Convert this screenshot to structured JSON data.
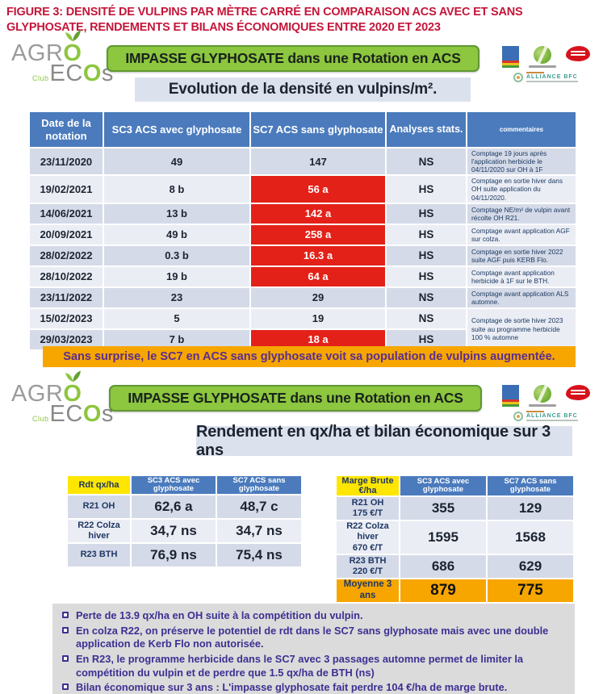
{
  "title": "FIGURE 3: DENSITÉ DE VULPINS PAR MÈTRE CARRÉ EN COMPARAISON ACS AVEC ET SANS GLYPHOSATE, RENDEMENTS ET BILANS ÉCONOMIQUES ENTRE 2020 ET 2023",
  "logo": {
    "agro_prefix": "AGR",
    "agro_o": "O",
    "club": "Club",
    "eco_prefix": "EC",
    "eco_o": "O",
    "eco_suffix": "s"
  },
  "partner_logos": {
    "alliance_label": "ALLIANCE BFC"
  },
  "section1": {
    "banner": "IMPASSE GLYPHOSATE dans une Rotation en ACS",
    "subtitle": "Evolution de la densité en vulpins/m².",
    "table": {
      "headers": {
        "date": "Date de la notation",
        "sc3": "SC3 ACS avec glyphosate",
        "sc7": "SC7 ACS sans glyphosate",
        "stats": "Analyses stats.",
        "comments": "commentaires"
      },
      "rows": [
        {
          "date": "23/11/2020",
          "sc3": "49",
          "sc7": "147",
          "sc7_red": false,
          "stats": "NS",
          "comment": "Comptage 19 jours après l'application herbicide le 04/11/2020 sur OH à 1F",
          "comment_rowspan": 1
        },
        {
          "date": "19/02/2021",
          "sc3": "8 b",
          "sc7": "56 a",
          "sc7_red": true,
          "stats": "HS",
          "comment": "Comptage en sortie hiver dans OH suite application du 04/11/2020.",
          "comment_rowspan": 1
        },
        {
          "date": "14/06/2021",
          "sc3": "13 b",
          "sc7": "142 a",
          "sc7_red": true,
          "stats": "HS",
          "comment": "Comptage NE/m² de vulpin avant récolte OH R21.",
          "comment_rowspan": 1
        },
        {
          "date": "20/09/2021",
          "sc3": "49 b",
          "sc7": "258 a",
          "sc7_red": true,
          "stats": "HS",
          "comment": "Comptage avant application AGF sur colza.",
          "comment_rowspan": 1
        },
        {
          "date": "28/02/2022",
          "sc3": "0.3 b",
          "sc7": "16.3 a",
          "sc7_red": true,
          "stats": "HS",
          "comment": "Comptage en sortie hiver 2022 suite AGF puis KERB Flo.",
          "comment_rowspan": 1
        },
        {
          "date": "28/10/2022",
          "sc3": "19 b",
          "sc7": "64 a",
          "sc7_red": true,
          "stats": "HS",
          "comment": "Comptage avant application herbicide à 1F sur le BTH.",
          "comment_rowspan": 1
        },
        {
          "date": "23/11/2022",
          "sc3": "23",
          "sc7": "29",
          "sc7_red": false,
          "stats": "NS",
          "comment": "Comptage avant application ALS automne.",
          "comment_rowspan": 1
        },
        {
          "date": "15/02/2023",
          "sc3": "5",
          "sc7": "19",
          "sc7_red": false,
          "stats": "NS",
          "comment": "Comptage de sortie hiver 2023 suite au programme herbicide 100 % automne",
          "comment_rowspan": 2
        },
        {
          "date": "29/03/2023",
          "sc3": "7 b",
          "sc7": "18 a",
          "sc7_red": true,
          "stats": "HS",
          "comment": null,
          "comment_rowspan": 0
        }
      ]
    },
    "conclusion": "Sans surprise, le SC7 en ACS sans glyphosate voit sa population de vulpins augmentée."
  },
  "section2": {
    "banner": "IMPASSE GLYPHOSATE dans une Rotation en ACS",
    "subtitle": "Rendement en qx/ha et bilan économique sur 3 ans",
    "yield_table": {
      "corner": "Rdt qx/ha",
      "col1": "SC3 ACS avec glyphosate",
      "col2": "SC7 ACS sans glyphosate",
      "rows": [
        {
          "label": "R21 OH",
          "sc3": "62,6 a",
          "sc7": "48,7 c"
        },
        {
          "label": "R22 Colza hiver",
          "sc3": "34,7 ns",
          "sc7": "34,7 ns"
        },
        {
          "label": "R23 BTH",
          "sc3": "76,9 ns",
          "sc7": "75,4 ns"
        }
      ]
    },
    "margin_table": {
      "corner": "Marge Brute €/ha",
      "col1": "SC3 ACS avec glyphosate",
      "col2": "SC7 ACS sans glyphosate",
      "rows": [
        {
          "label": "R21 OH",
          "sublabel": "175 €/T",
          "sc3": "355",
          "sc7": "129"
        },
        {
          "label": "R22 Colza hiver",
          "sublabel": "670 €/T",
          "sc3": "1595",
          "sc7": "1568"
        },
        {
          "label": "R23 BTH",
          "sublabel": "220 €/T",
          "sc3": "686",
          "sc7": "629"
        }
      ],
      "summary": {
        "label": "Moyenne 3 ans",
        "sc3": "879",
        "sc7": "775"
      }
    },
    "notes": [
      "Perte de 13.9 qx/ha en OH suite à la compétition du vulpin.",
      "En colza R22, on préserve le potentiel de rdt dans le SC7 sans glyphosate mais avec une double application de Kerb Flo non autorisée.",
      "En R23, le programme herbicide dans le SC7 avec 3 passages automne permet de limiter la compétition du vulpin et de perdre que 1.5 qx/ha de BTH (ns)",
      "Bilan économique sur 3 ans : L'impasse glyphosate fait perdre 104 €/ha de marge brute."
    ]
  },
  "colors": {
    "title_red": "#C4163A",
    "banner_green": "#8DC63F",
    "banner_border": "#5E9732",
    "header_blue": "#4B7BBD",
    "red_cell": "#E32119",
    "orange": "#F7A600",
    "yellow": "#FFE600",
    "row_dark": "#D5DAE8",
    "row_light": "#EBEDF5",
    "navy": "#1F3864",
    "note_purple": "#3B3092",
    "conclusion_purple": "#5A2D91",
    "subtitle_bg": "#DCE1EE",
    "notes_bg": "#DBDBDB"
  }
}
